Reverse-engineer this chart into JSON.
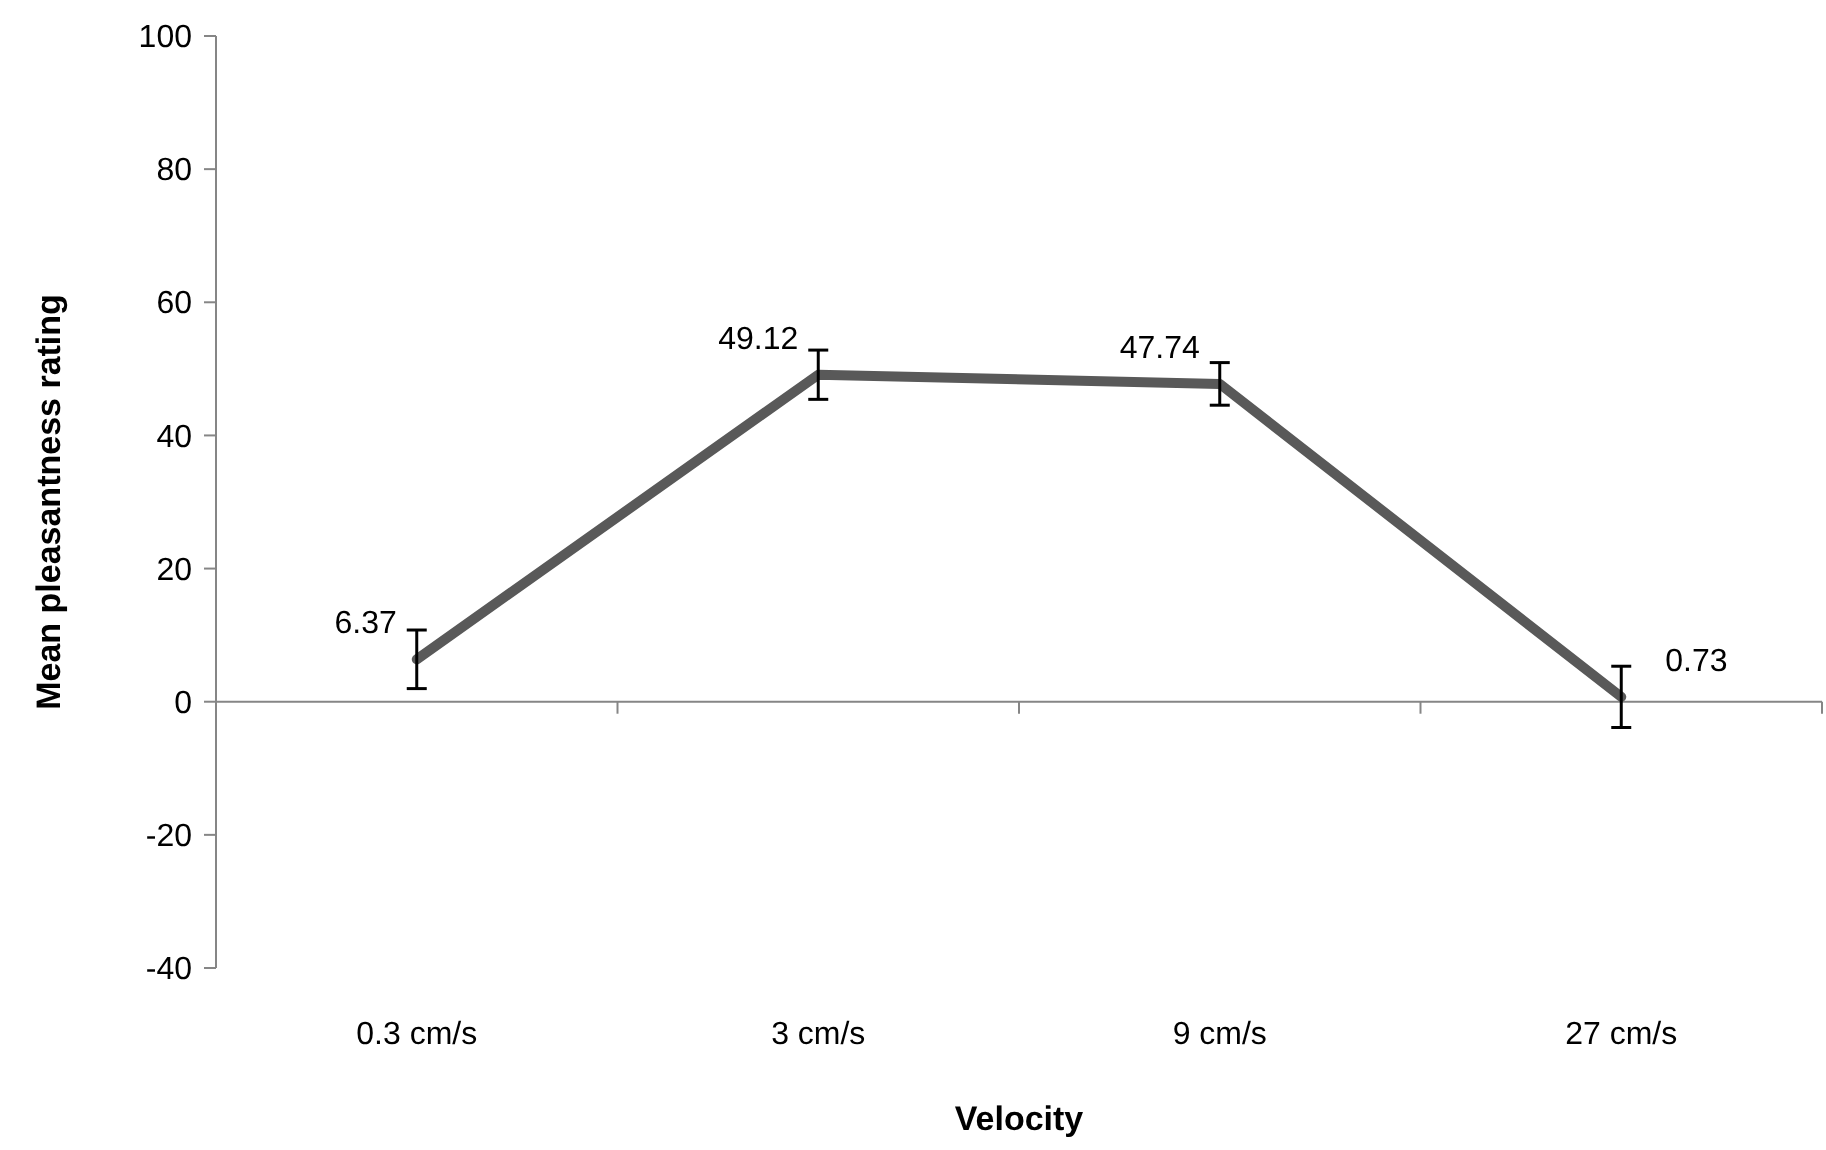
{
  "chart_data": {
    "type": "line",
    "xlabel": "Velocity",
    "ylabel": "Mean pleasantness rating",
    "categories": [
      "0.3 cm/s",
      "3 cm/s",
      "9 cm/s",
      "27 cm/s"
    ],
    "series": [
      {
        "color": "#595959",
        "values": [
          6.37,
          49.12,
          47.74,
          0.73
        ],
        "errors": [
          4.4,
          3.7,
          3.2,
          4.6
        ]
      }
    ],
    "ylim": [
      -40,
      100
    ],
    "yticks": [
      -40,
      -20,
      0,
      20,
      40,
      60,
      80,
      100
    ],
    "data_labels": true,
    "marker": "none",
    "line_style": "solid"
  }
}
